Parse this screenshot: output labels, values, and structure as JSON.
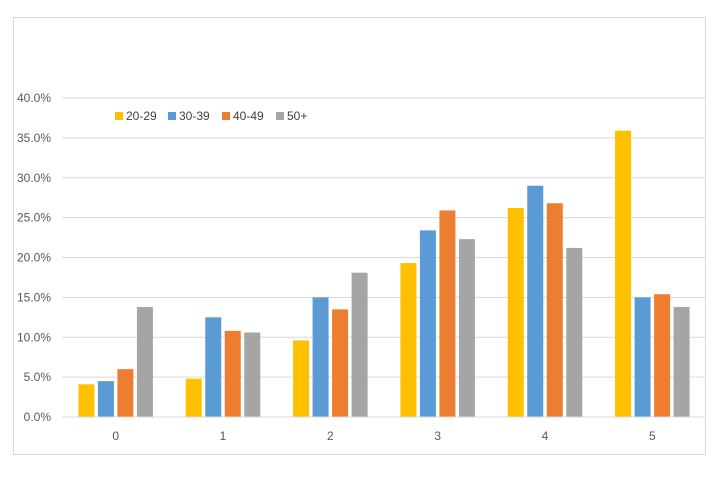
{
  "chart_data": {
    "type": "bar",
    "title": "",
    "xlabel": "",
    "ylabel": "",
    "categories": [
      "0",
      "1",
      "2",
      "3",
      "4",
      "5"
    ],
    "series": [
      {
        "name": "20-29",
        "color": "#FFC000",
        "values": [
          4.1,
          4.8,
          9.6,
          19.3,
          26.2,
          35.9
        ]
      },
      {
        "name": "30-39",
        "color": "#5B9BD5",
        "values": [
          4.5,
          12.5,
          15.0,
          23.4,
          29.0,
          15.0
        ]
      },
      {
        "name": "40-49",
        "color": "#ED7D31",
        "values": [
          6.0,
          10.8,
          13.5,
          25.9,
          26.8,
          15.4
        ]
      },
      {
        "name": "50+",
        "color": "#A5A5A5",
        "values": [
          13.8,
          10.6,
          18.1,
          22.3,
          21.2,
          13.8
        ]
      }
    ],
    "ylim": [
      0,
      40
    ],
    "yticks": [
      "0.0%",
      "5.0%",
      "10.0%",
      "15.0%",
      "20.0%",
      "25.0%",
      "30.0%",
      "35.0%",
      "40.0%"
    ],
    "grid": true,
    "legend_position": "top-left"
  }
}
